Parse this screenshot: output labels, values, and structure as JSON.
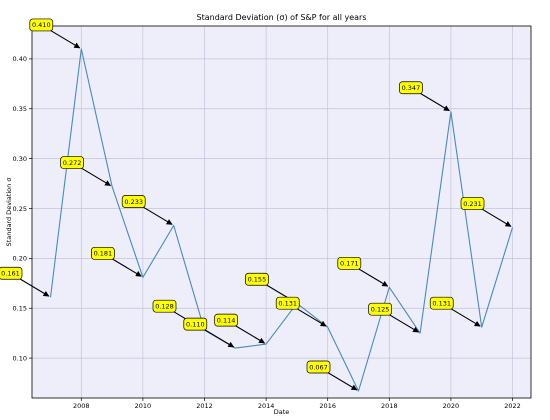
{
  "chart_data": {
    "type": "line",
    "title": "Standard Deviation (σ) of S&P for all years",
    "xlabel": "Date",
    "ylabel": "Standard Deviation σ",
    "xlim": [
      2006.4,
      2022.6
    ],
    "ylim": [
      0.06,
      0.433
    ],
    "grid": true,
    "x_ticks": [
      "2008",
      "2010",
      "2012",
      "2014",
      "2016",
      "2018",
      "2020",
      "2022"
    ],
    "y_ticks": [
      "0.10",
      "0.15",
      "0.20",
      "0.25",
      "0.30",
      "0.35",
      "0.40"
    ],
    "colors": {
      "line": "#4a8ab6",
      "plot_bg": "#eeeefa",
      "grid": "#c2c2dc",
      "label_bg": "#ffff00",
      "arrow": "#000000"
    },
    "series": [
      {
        "x": [
          2007,
          2008,
          2009,
          2010,
          2011,
          2012,
          2013,
          2014,
          2015,
          2016,
          2017,
          2018,
          2019,
          2020,
          2021,
          2022
        ],
        "values": [
          0.161,
          0.41,
          0.272,
          0.181,
          0.233,
          0.128,
          0.11,
          0.114,
          0.155,
          0.131,
          0.067,
          0.171,
          0.125,
          0.347,
          0.131,
          0.231
        ]
      }
    ],
    "annotations": [
      {
        "text": "0.161",
        "x": 2007,
        "y": 0.161
      },
      {
        "text": "0.410",
        "x": 2008,
        "y": 0.41
      },
      {
        "text": "0.272",
        "x": 2009,
        "y": 0.272
      },
      {
        "text": "0.181",
        "x": 2010,
        "y": 0.181
      },
      {
        "text": "0.233",
        "x": 2011,
        "y": 0.233
      },
      {
        "text": "0.128",
        "x": 2012,
        "y": 0.128
      },
      {
        "text": "0.110",
        "x": 2013,
        "y": 0.11
      },
      {
        "text": "0.114",
        "x": 2014,
        "y": 0.114
      },
      {
        "text": "0.155",
        "x": 2015,
        "y": 0.155
      },
      {
        "text": "0.131",
        "x": 2016,
        "y": 0.131
      },
      {
        "text": "0.067",
        "x": 2017,
        "y": 0.067
      },
      {
        "text": "0.171",
        "x": 2018,
        "y": 0.171
      },
      {
        "text": "0.125",
        "x": 2019,
        "y": 0.125
      },
      {
        "text": "0.347",
        "x": 2020,
        "y": 0.347
      },
      {
        "text": "0.131",
        "x": 2021,
        "y": 0.131
      },
      {
        "text": "0.231",
        "x": 2022,
        "y": 0.231
      }
    ]
  }
}
